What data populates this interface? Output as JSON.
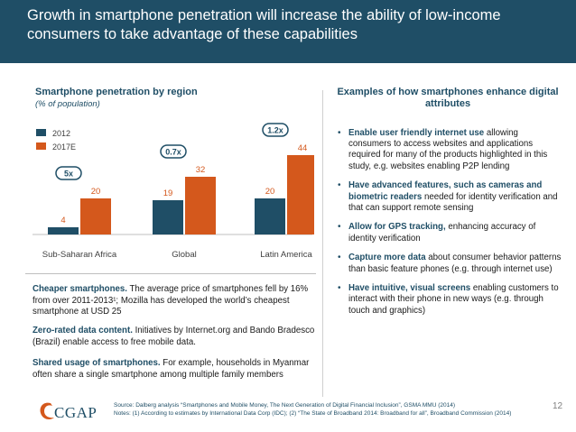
{
  "slide": {
    "title": "Growth in smartphone penetration will increase the ability of low-income consumers to take advantage of these capabilities",
    "page_number": "12"
  },
  "chart_heading": "Smartphone penetration by region",
  "chart_subheading": "(% of population)",
  "chart_data": {
    "type": "bar",
    "title": "Smartphone penetration by region",
    "ylabel": "% of population",
    "categories": [
      "Sub-Saharan Africa",
      "Global",
      "Latin America"
    ],
    "series": [
      {
        "name": "2012",
        "color": "#1f4e66",
        "values": [
          4,
          19,
          20
        ]
      },
      {
        "name": "2017E",
        "color": "#d4581c",
        "values": [
          20,
          32,
          44
        ]
      }
    ],
    "growth_labels": [
      "5x",
      "0.7x",
      "1.2x"
    ],
    "ylim": [
      0,
      50
    ],
    "grid": false,
    "legend": "top-left"
  },
  "left_paragraphs": [
    {
      "bold": "Cheaper smartphones.",
      "text": " The average price of smartphones fell by 16% from over 2011-2013¹; Mozilla has developed the world’s cheapest smartphone at USD 25"
    },
    {
      "bold": "Zero-rated data content.",
      "text": " Initiatives by Internet.org and Bando Bradesco (Brazil) enable access to free mobile data."
    },
    {
      "bold": "Shared usage of smartphones.",
      "text": "  For example, households in Myanmar often share a single smartphone among multiple family members"
    }
  ],
  "right_heading": "Examples of how smartphones enhance digital attributes",
  "bullets": [
    {
      "bold": "Enable user friendly internet use",
      "text": " allowing consumers to access websites and applications required for many of the products highlighted in this study, e.g. websites enabling P2P lending"
    },
    {
      "bold": "Have advanced features, such as cameras and biometric readers",
      "text": " needed for identity verification and that can support remote sensing"
    },
    {
      "bold": "Allow for GPS tracking,",
      "text": " enhancing accuracy of identity verification"
    },
    {
      "bold": "Capture more data",
      "text": " about consumer behavior patterns than basic feature phones (e.g. through internet use)"
    },
    {
      "bold": "Have intuitive, visual screens",
      "text": " enabling customers to interact with their phone in new ways (e.g. through touch and graphics)"
    }
  ],
  "footer": {
    "source": "Source: Dalberg analysis “Smartphones and Mobile Money, The Next Generation of Digital Financial Inclusion”, GSMA MMU (2014)",
    "notes": "Notes: (1) According to estimates by International Data Corp (IDC); (2) “The State of Broadband 2014: Broadband for all”, Broadband Commission (2014)"
  },
  "logo": {
    "text": "CGAP"
  }
}
